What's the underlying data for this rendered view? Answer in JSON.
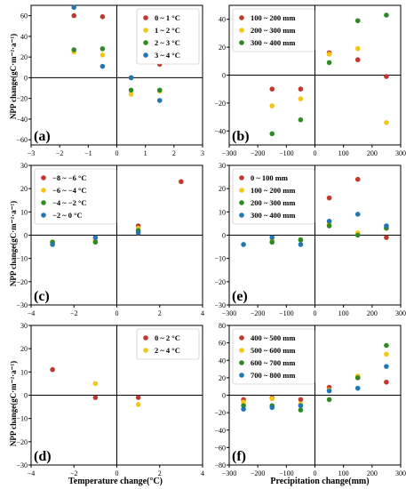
{
  "figure": {
    "ylabel": "NPP change(gC·m⁻²·a⁻¹)",
    "xlabel_left": "Temperature change(°C)",
    "xlabel_right": "Precipitation change(mm)"
  },
  "colors": {
    "red": "#c0392b",
    "yellow": "#f5c518",
    "green": "#2e8b22",
    "blue": "#1f77b4"
  },
  "chart_data": [
    {
      "panel": "(a)",
      "type": "scatter",
      "xlim": [
        -3,
        3
      ],
      "ylim": [
        -65,
        70
      ],
      "xticks": [
        -3,
        -2,
        -1,
        0,
        1,
        2,
        3
      ],
      "yticks": [
        -60,
        -40,
        -20,
        0,
        20,
        40,
        60
      ],
      "legend_position": "top-right",
      "series": [
        {
          "name": "0 ~ 1 °C",
          "color": "#c0392b",
          "points": [
            [
              -1.5,
              60
            ],
            [
              -0.5,
              59
            ],
            [
              0.5,
              0
            ],
            [
              1.5,
              13
            ]
          ]
        },
        {
          "name": "1 ~ 2 °C",
          "color": "#f5c518",
          "points": [
            [
              -1.5,
              25
            ],
            [
              -0.5,
              22
            ],
            [
              0.5,
              -16
            ],
            [
              1.5,
              -13
            ]
          ]
        },
        {
          "name": "2 ~ 3 °C",
          "color": "#2e8b22",
          "points": [
            [
              -1.5,
              27
            ],
            [
              -0.5,
              28
            ],
            [
              0.5,
              -12
            ],
            [
              1.5,
              -12
            ]
          ]
        },
        {
          "name": "3 ~ 4 °C",
          "color": "#1f77b4",
          "points": [
            [
              -1.5,
              68
            ],
            [
              -0.5,
              11
            ],
            [
              0.5,
              0
            ],
            [
              1.5,
              -22
            ]
          ]
        }
      ]
    },
    {
      "panel": "(b)",
      "type": "scatter",
      "xlim": [
        -300,
        300
      ],
      "ylim": [
        -50,
        50
      ],
      "xticks": [
        -300,
        -200,
        -100,
        0,
        100,
        200,
        300
      ],
      "yticks": [
        -40,
        -20,
        0,
        20,
        40
      ],
      "legend_position": "top-left",
      "series": [
        {
          "name": "100 ~ 200 mm",
          "color": "#c0392b",
          "points": [
            [
              -150,
              -10
            ],
            [
              -50,
              -10
            ],
            [
              50,
              16
            ],
            [
              150,
              11
            ],
            [
              250,
              -1
            ]
          ]
        },
        {
          "name": "200 ~ 300 mm",
          "color": "#f5c518",
          "points": [
            [
              -150,
              -22
            ],
            [
              -50,
              -17
            ],
            [
              50,
              15
            ],
            [
              150,
              19
            ],
            [
              250,
              -34
            ]
          ]
        },
        {
          "name": "300 ~ 400 mm",
          "color": "#2e8b22",
          "points": [
            [
              -150,
              -42
            ],
            [
              -50,
              -32
            ],
            [
              50,
              9
            ],
            [
              150,
              39
            ],
            [
              250,
              43
            ]
          ]
        }
      ]
    },
    {
      "panel": "(c)",
      "type": "scatter",
      "xlim": [
        -4,
        4
      ],
      "ylim": [
        -30,
        30
      ],
      "xticks": [
        -4,
        -2,
        0,
        2,
        4
      ],
      "yticks": [
        -30,
        -20,
        -10,
        0,
        10,
        20,
        30
      ],
      "legend_position": "top-left",
      "series": [
        {
          "name": "−8 ~ −6 °C",
          "color": "#c0392b",
          "points": [
            [
              -3,
              -3
            ],
            [
              -1,
              -2
            ],
            [
              1,
              4
            ],
            [
              3,
              23
            ]
          ]
        },
        {
          "name": "−6 ~ −4 °C",
          "color": "#f5c518",
          "points": [
            [
              -3,
              -3
            ],
            [
              -1,
              -2
            ],
            [
              1,
              3
            ]
          ]
        },
        {
          "name": "−4 ~ −2 °C",
          "color": "#2e8b22",
          "points": [
            [
              -3,
              -3
            ],
            [
              -1,
              -3
            ],
            [
              1,
              2
            ]
          ]
        },
        {
          "name": "−2 ~ 0 °C",
          "color": "#1f77b4",
          "points": [
            [
              -3,
              -4
            ],
            [
              -1,
              -1
            ],
            [
              1,
              1
            ]
          ]
        }
      ]
    },
    {
      "panel": "(e)",
      "type": "scatter",
      "xlim": [
        -300,
        300
      ],
      "ylim": [
        -30,
        30
      ],
      "xticks": [
        -300,
        -200,
        -100,
        0,
        100,
        200,
        300
      ],
      "yticks": [
        -30,
        -20,
        -10,
        0,
        10,
        20,
        30
      ],
      "legend_position": "top-left",
      "series": [
        {
          "name": "0 ~ 100 mm",
          "color": "#c0392b",
          "points": [
            [
              50,
              16
            ],
            [
              150,
              24
            ],
            [
              250,
              -1
            ]
          ]
        },
        {
          "name": "100 ~ 200 mm",
          "color": "#f5c518",
          "points": [
            [
              -150,
              -2
            ],
            [
              -50,
              -2
            ],
            [
              50,
              5
            ],
            [
              150,
              1
            ],
            [
              250,
              3
            ]
          ]
        },
        {
          "name": "200 ~ 300 mm",
          "color": "#2e8b22",
          "points": [
            [
              -150,
              -3
            ],
            [
              -50,
              -2
            ],
            [
              50,
              4
            ],
            [
              150,
              0
            ],
            [
              250,
              3
            ]
          ]
        },
        {
          "name": "300 ~ 400 mm",
          "color": "#1f77b4",
          "points": [
            [
              -250,
              -4
            ],
            [
              -150,
              -1
            ],
            [
              -50,
              -4
            ],
            [
              50,
              6
            ],
            [
              150,
              9
            ],
            [
              250,
              4
            ]
          ]
        }
      ]
    },
    {
      "panel": "(d)",
      "type": "scatter",
      "xlim": [
        -4,
        4
      ],
      "ylim": [
        -30,
        30
      ],
      "xticks": [
        -4,
        -2,
        0,
        2,
        4
      ],
      "yticks": [
        -30,
        -20,
        -10,
        0,
        10,
        20,
        30
      ],
      "legend_position": "top-right",
      "series": [
        {
          "name": "0 ~ 2 °C",
          "color": "#c0392b",
          "points": [
            [
              -3,
              11
            ],
            [
              -1,
              -1
            ],
            [
              1,
              -1
            ]
          ]
        },
        {
          "name": "2 ~ 4 °C",
          "color": "#f5c518",
          "points": [
            [
              -1,
              5
            ],
            [
              1,
              -4
            ]
          ]
        }
      ]
    },
    {
      "panel": "(f)",
      "type": "scatter",
      "xlim": [
        -300,
        300
      ],
      "ylim": [
        -80,
        80
      ],
      "xticks": [
        -300,
        -200,
        -100,
        0,
        100,
        200,
        300
      ],
      "yticks": [
        -80,
        -60,
        -40,
        -20,
        0,
        20,
        40,
        60,
        80
      ],
      "legend_position": "top-left",
      "series": [
        {
          "name": "400 ~ 500 mm",
          "color": "#c0392b",
          "points": [
            [
              -250,
              -5
            ],
            [
              -150,
              -3
            ],
            [
              -50,
              -5
            ],
            [
              50,
              9
            ],
            [
              150,
              20
            ],
            [
              250,
              15
            ]
          ]
        },
        {
          "name": "500 ~ 600 mm",
          "color": "#f5c518",
          "points": [
            [
              -250,
              -8
            ],
            [
              -150,
              -4
            ],
            [
              -50,
              -10
            ],
            [
              50,
              6
            ],
            [
              150,
              22
            ],
            [
              250,
              47
            ]
          ]
        },
        {
          "name": "600 ~ 700 mm",
          "color": "#2e8b22",
          "points": [
            [
              -250,
              -12
            ],
            [
              -150,
              -12
            ],
            [
              -50,
              -17
            ],
            [
              50,
              -5
            ],
            [
              150,
              20
            ],
            [
              250,
              57
            ]
          ]
        },
        {
          "name": "700 ~ 800 mm",
          "color": "#1f77b4",
          "points": [
            [
              -250,
              -16
            ],
            [
              -150,
              -14
            ],
            [
              -50,
              -12
            ],
            [
              50,
              5
            ],
            [
              150,
              8
            ],
            [
              250,
              33
            ]
          ]
        }
      ]
    }
  ]
}
